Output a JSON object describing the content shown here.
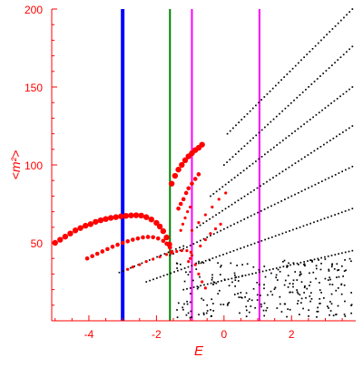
{
  "chart_data": {
    "type": "scatter",
    "title": "",
    "xlabel": "E",
    "ylabel": "<m²>",
    "xlim": [
      -5.1,
      3.9
    ],
    "ylim": [
      0,
      200
    ],
    "x_ticks": [
      -4,
      -2,
      0,
      2
    ],
    "y_ticks": [
      50,
      100,
      150,
      200
    ],
    "x_tick_labels": [
      "-4",
      "-2",
      "0",
      "2"
    ],
    "y_tick_labels": [
      "50",
      "100",
      "150",
      "200"
    ],
    "grid": false,
    "colors": {
      "axis": "#ff0000",
      "red_points": "#ff0000",
      "black_points": "#000000",
      "blue_line": "#0000ff",
      "green_line": "#008000",
      "magenta_line": "#ff00ff"
    },
    "vertical_lines": [
      {
        "x": -3.0,
        "color": "#0000ff",
        "weight": "thick"
      },
      {
        "x": -1.6,
        "color": "#008000",
        "weight": "medium"
      },
      {
        "x": -0.95,
        "color": "#ff00ff",
        "weight": "medium"
      },
      {
        "x": 1.05,
        "color": "#ff00ff",
        "weight": "medium"
      }
    ],
    "red_series": [
      {
        "points": [
          [
            -5.0,
            50
          ],
          [
            -4.85,
            52
          ],
          [
            -4.7,
            54
          ],
          [
            -4.55,
            56
          ],
          [
            -4.4,
            58
          ],
          [
            -4.25,
            59.5
          ],
          [
            -4.1,
            61
          ],
          [
            -3.95,
            62
          ],
          [
            -3.8,
            63.5
          ],
          [
            -3.65,
            64.5
          ],
          [
            -3.5,
            65.3
          ],
          [
            -3.35,
            66
          ],
          [
            -3.2,
            66.5
          ],
          [
            -3.05,
            67
          ],
          [
            -2.9,
            67.3
          ],
          [
            -2.75,
            67.6
          ],
          [
            -2.6,
            67.7
          ],
          [
            -2.45,
            67.5
          ],
          [
            -2.3,
            66.5
          ],
          [
            -2.15,
            65
          ],
          [
            -2.0,
            62.8
          ],
          [
            -1.9,
            60.5
          ],
          [
            -1.8,
            57.5
          ],
          [
            -1.7,
            53.5
          ],
          [
            -1.62,
            49
          ]
        ],
        "size": "large"
      },
      {
        "points": [
          [
            -4.05,
            40
          ],
          [
            -3.9,
            41.5
          ],
          [
            -3.75,
            43
          ],
          [
            -3.6,
            44.5
          ],
          [
            -3.45,
            46
          ],
          [
            -3.3,
            47.5
          ],
          [
            -3.15,
            48.8
          ],
          [
            -3.0,
            50
          ],
          [
            -2.85,
            51
          ],
          [
            -2.7,
            52
          ],
          [
            -2.55,
            52.8
          ],
          [
            -2.4,
            53.5
          ],
          [
            -2.25,
            53.8
          ],
          [
            -2.1,
            53.6
          ],
          [
            -1.95,
            52.8
          ],
          [
            -1.8,
            51.3
          ],
          [
            -1.7,
            49.5
          ],
          [
            -1.6,
            47
          ],
          [
            -1.55,
            44
          ]
        ],
        "size": "medium"
      },
      {
        "points": [
          [
            -2.85,
            33
          ],
          [
            -2.7,
            34.5
          ],
          [
            -2.5,
            36
          ],
          [
            -2.3,
            38
          ],
          [
            -2.1,
            39.5
          ],
          [
            -1.9,
            41
          ],
          [
            -1.7,
            42.5
          ],
          [
            -1.55,
            43.5
          ],
          [
            -1.4,
            44.5
          ],
          [
            -1.25,
            45
          ],
          [
            -1.1,
            45
          ],
          [
            -0.98,
            44
          ]
        ],
        "size": "small"
      },
      {
        "points": [
          [
            -1.55,
            88
          ],
          [
            -1.45,
            93
          ],
          [
            -1.35,
            97
          ],
          [
            -1.25,
            100
          ],
          [
            -1.15,
            103
          ],
          [
            -1.05,
            105.5
          ],
          [
            -0.95,
            107.5
          ],
          [
            -0.85,
            109.5
          ],
          [
            -0.75,
            111
          ],
          [
            -0.65,
            113
          ]
        ],
        "size": "large"
      },
      {
        "points": [
          [
            -1.35,
            72
          ],
          [
            -1.28,
            75
          ],
          [
            -1.2,
            78
          ],
          [
            -1.12,
            82
          ],
          [
            -1.05,
            85
          ],
          [
            -0.95,
            88
          ],
          [
            -0.85,
            91
          ],
          [
            -0.75,
            94
          ]
        ],
        "size": "medium"
      },
      {
        "points": [
          [
            -1.28,
            58
          ],
          [
            -1.22,
            62
          ],
          [
            -1.15,
            66
          ],
          [
            -1.08,
            70
          ],
          [
            -1.0,
            73
          ]
        ],
        "size": "small"
      },
      {
        "points": [
          [
            -0.95,
            58
          ],
          [
            -0.75,
            63
          ],
          [
            -0.55,
            68
          ],
          [
            -0.35,
            73
          ],
          [
            -0.15,
            78
          ],
          [
            0.05,
            82
          ]
        ],
        "size": "small"
      },
      {
        "points": [
          [
            -0.7,
            48
          ],
          [
            -0.55,
            52
          ],
          [
            -0.4,
            56
          ],
          [
            -0.25,
            59
          ],
          [
            -0.1,
            62
          ]
        ],
        "size": "small"
      },
      {
        "points": [
          [
            -1.05,
            38
          ],
          [
            -1.0,
            40
          ],
          [
            -0.95,
            42
          ],
          [
            -0.85,
            36
          ],
          [
            -0.75,
            30
          ],
          [
            -0.65,
            25
          ],
          [
            -0.55,
            21
          ]
        ],
        "size": "small"
      }
    ],
    "black_series": [
      {
        "x_start": 0.1,
        "y_start": 120,
        "x_end": 3.8,
        "y_end": 200,
        "count": 45
      },
      {
        "x_start": 0.0,
        "y_start": 100,
        "x_end": 3.8,
        "y_end": 176,
        "count": 45
      },
      {
        "x_start": -0.4,
        "y_start": 80,
        "x_end": 3.8,
        "y_end": 150,
        "count": 48
      },
      {
        "x_start": -0.8,
        "y_start": 60,
        "x_end": 3.8,
        "y_end": 125,
        "count": 50
      },
      {
        "x_start": -1.6,
        "y_start": 42,
        "x_end": 3.8,
        "y_end": 99,
        "count": 55
      },
      {
        "x_start": -2.3,
        "y_start": 25,
        "x_end": 3.8,
        "y_end": 72,
        "count": 60
      },
      {
        "x_start": -3.1,
        "y_start": 31,
        "x_end": -1.2,
        "y_end": 48,
        "count": 18
      },
      {
        "x_start": -1.2,
        "y_start": 20,
        "x_end": 3.8,
        "y_end": 45,
        "count": 50
      }
    ],
    "black_cloud": {
      "x_range": [
        -1.4,
        3.8
      ],
      "y_range": [
        2,
        40
      ],
      "count": 260
    }
  }
}
